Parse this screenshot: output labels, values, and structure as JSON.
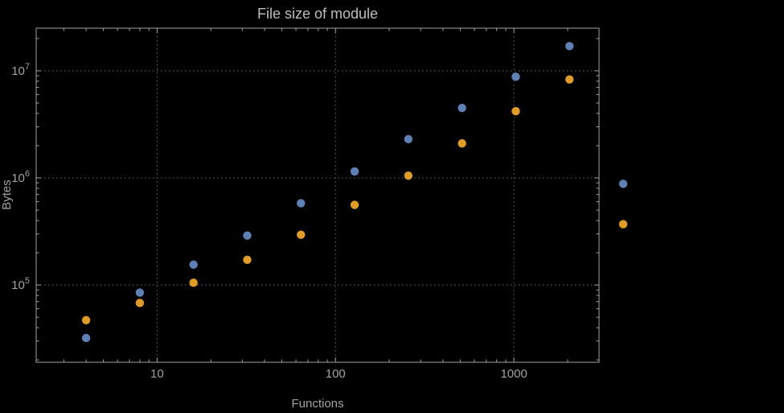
{
  "title": "File size of module",
  "axes": {
    "xlabel": "Functions",
    "ylabel": "Bytes"
  },
  "colors": {
    "background": "#000000",
    "frame": "#a2a2a2",
    "grid": "#6b6b6b",
    "tick": "#a2a2a2",
    "label_text": "#a2a2a2",
    "title_text": "#bdbdbd"
  },
  "chart_data": {
    "type": "scatter",
    "title": "File size of module",
    "xlabel": "Functions",
    "ylabel": "Bytes",
    "xscale": "log",
    "yscale": "log",
    "xlim": [
      2.1,
      3000
    ],
    "ylim": [
      19000,
      25000000
    ],
    "grid": true,
    "legend": "none",
    "x": [
      4,
      8,
      16,
      32,
      64,
      128,
      256,
      512,
      1024,
      2048,
      4096
    ],
    "series": [
      {
        "name": "series-blue",
        "color": "#5e81b5",
        "values": [
          32000,
          85000,
          155000,
          290000,
          580000,
          1150000,
          2300000,
          4500000,
          8800000,
          17000000,
          880000
        ]
      },
      {
        "name": "series-orange",
        "color": "#e19c24",
        "values": [
          47000,
          68000,
          105000,
          172000,
          295000,
          560000,
          1050000,
          2100000,
          4200000,
          8300000,
          370000
        ]
      }
    ],
    "x_ticks": [
      {
        "value": 10,
        "label": "10"
      },
      {
        "value": 100,
        "label": "100"
      },
      {
        "value": 1000,
        "label": "1000"
      }
    ],
    "y_ticks": [
      {
        "value": 100000,
        "base": "10",
        "exp": "5"
      },
      {
        "value": 1000000,
        "base": "10",
        "exp": "6"
      },
      {
        "value": 10000000,
        "base": "10",
        "exp": "7"
      }
    ]
  }
}
